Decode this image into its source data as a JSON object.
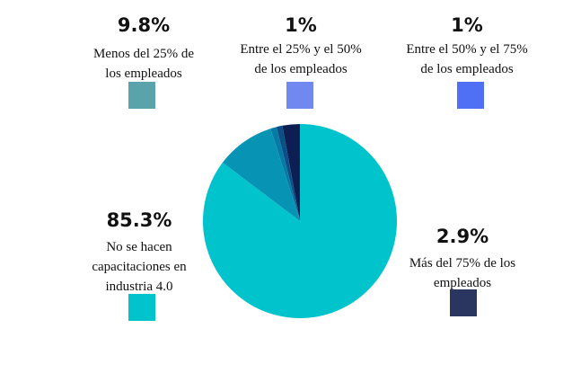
{
  "chart_data": {
    "type": "pie",
    "slices": [
      {
        "key": "menos25",
        "percent_label": "9.8%",
        "value": 9.8,
        "label": "Menos del 25% de los empleados",
        "label_lines": [
          "Menos del 25% de",
          "los empleados"
        ],
        "color": "#5ba3ab",
        "slice_color": "#0794b4"
      },
      {
        "key": "25a50",
        "percent_label": "1%",
        "value": 1,
        "label": "Entre el 25% y el 50% de los empleados",
        "label_lines": [
          "Entre el 25% y el 50%",
          "de los empleados"
        ],
        "color": "#7188f0",
        "slice_color": "#067aa5"
      },
      {
        "key": "50a75",
        "percent_label": "1%",
        "value": 1,
        "label": "Entre el 50% y el 75% de los empleados",
        "label_lines": [
          "Entre el 50% y el 75%",
          "de los empleados"
        ],
        "color": "#4f6ff5",
        "slice_color": "#0b4f86"
      },
      {
        "key": "mas75",
        "percent_label": "2.9%",
        "value": 2.9,
        "label": "Más del 75% de los empleados",
        "label_lines": [
          "Más del 75% de los",
          "empleados"
        ],
        "color": "#2a3660",
        "slice_color": "#0d1f52"
      },
      {
        "key": "no",
        "percent_label": "85.3%",
        "value": 85.3,
        "label": "No se hacen capacitaciones en industria 4.0",
        "label_lines": [
          "No se hacen",
          "capacitaciones en",
          "industria 4.0"
        ],
        "color": "#00c3cc",
        "slice_color": "#00c3cc"
      }
    ]
  }
}
